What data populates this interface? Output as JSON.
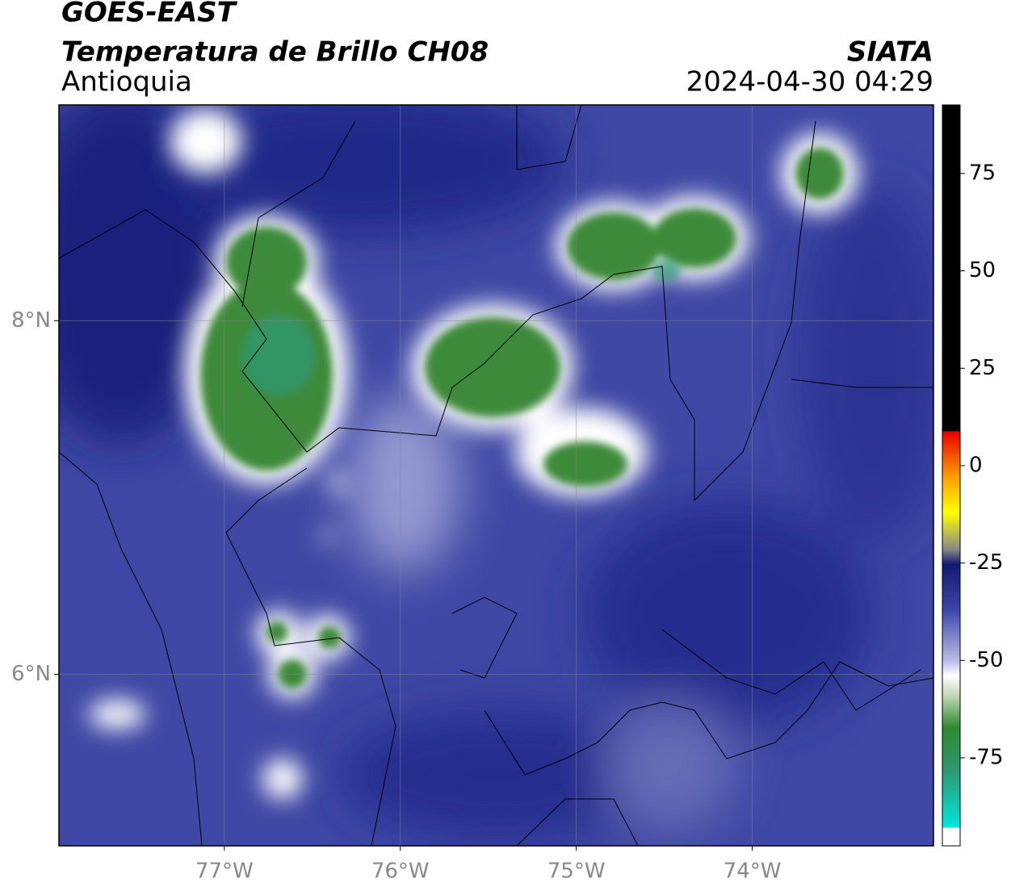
{
  "header": {
    "title": "GOES-EAST",
    "subtitle": "Temperatura de Brillo CH08",
    "region": "Antioquia",
    "source": "SIATA",
    "timestamp": "2024-04-30 04:29"
  },
  "map": {
    "lonlim": [
      -77.94,
      -72.97
    ],
    "latlim": [
      5.03,
      9.22
    ],
    "lonticks": [
      {
        "value": -77,
        "label": "77°W"
      },
      {
        "value": -76,
        "label": "76°W"
      },
      {
        "value": -75,
        "label": "75°W"
      },
      {
        "value": -74,
        "label": "74°W"
      }
    ],
    "latticks": [
      {
        "value": 8,
        "label": "8°N"
      },
      {
        "value": 6,
        "label": "6°N"
      }
    ],
    "grid": true
  },
  "colorbar": {
    "lim": [
      -97.6,
      92.6
    ],
    "ticks": [
      75,
      50,
      25,
      0,
      -25,
      -50,
      -75
    ]
  }
}
